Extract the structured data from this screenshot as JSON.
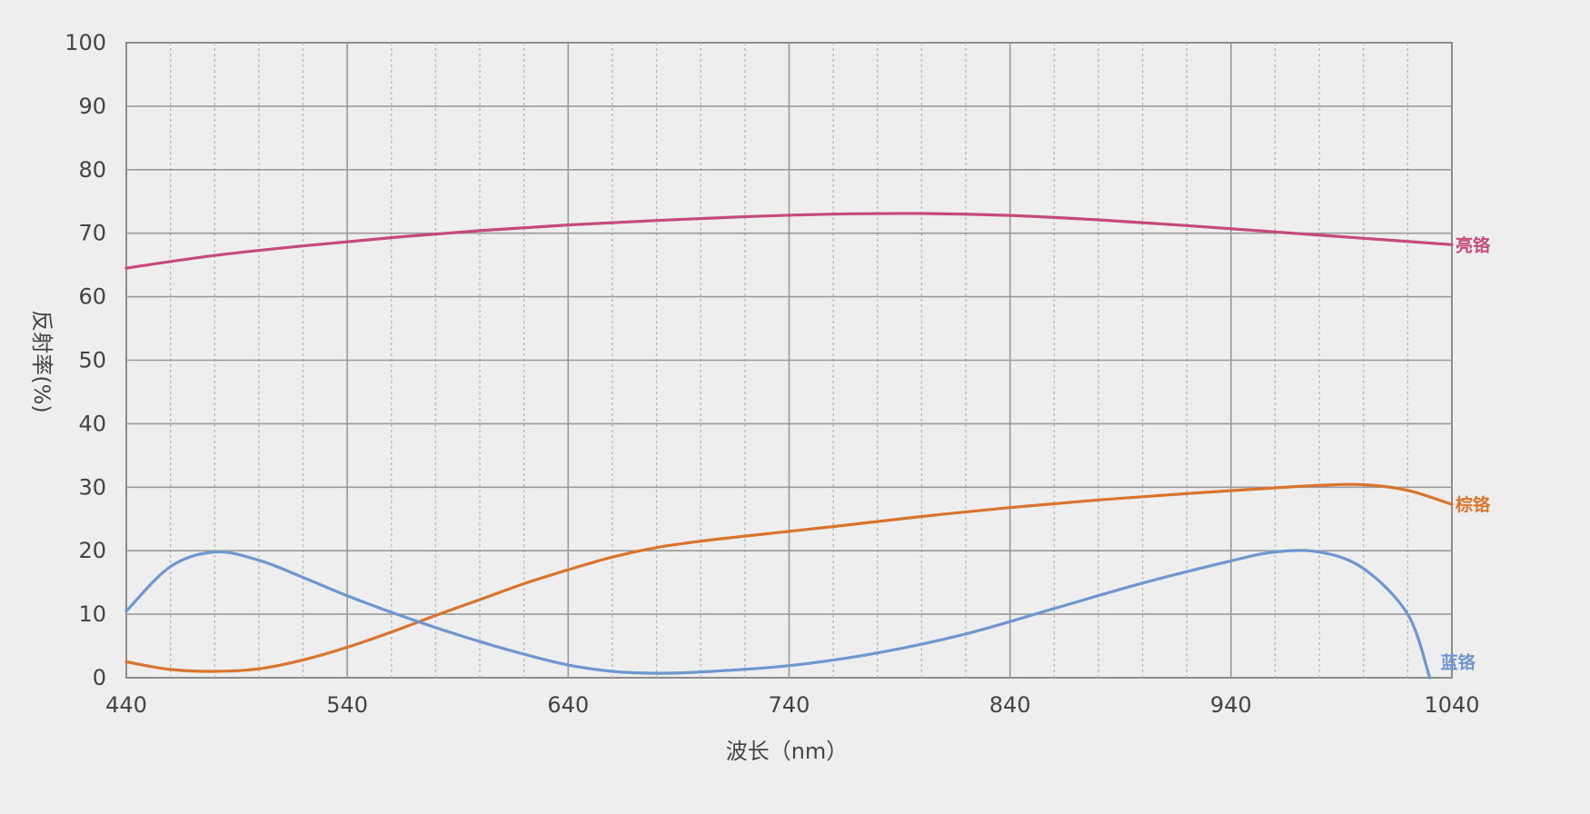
{
  "chart_data": {
    "type": "line",
    "title": "",
    "xlabel": "波长（nm）",
    "ylabel": "反射率(%)",
    "xlim": [
      440,
      1040
    ],
    "ylim": [
      0,
      100
    ],
    "x_ticks": [
      "440",
      "540",
      "640",
      "740",
      "840",
      "940",
      "1040"
    ],
    "y_ticks": [
      "0",
      "10",
      "20",
      "30",
      "40",
      "50",
      "60",
      "70",
      "80",
      "90",
      "100"
    ],
    "grid": true,
    "series": [
      {
        "name": "亮铬",
        "color": "#c4497c",
        "x": [
          440,
          480,
          520,
          560,
          600,
          640,
          680,
          720,
          760,
          800,
          840,
          880,
          920,
          960,
          1000,
          1040
        ],
        "y": [
          64.5,
          66.5,
          68.0,
          69.3,
          70.4,
          71.3,
          72.0,
          72.6,
          73.0,
          73.1,
          72.8,
          72.1,
          71.2,
          70.2,
          69.2,
          68.2
        ]
      },
      {
        "name": "棕铬",
        "color": "#d9742c",
        "x": [
          440,
          460,
          480,
          500,
          520,
          540,
          560,
          580,
          600,
          620,
          640,
          660,
          680,
          700,
          720,
          760,
          800,
          840,
          880,
          920,
          960,
          980,
          1000,
          1020,
          1040
        ],
        "y": [
          2.5,
          1.3,
          1.0,
          1.4,
          2.8,
          4.8,
          7.2,
          9.8,
          12.3,
          14.8,
          17.0,
          19.0,
          20.5,
          21.5,
          22.3,
          23.8,
          25.4,
          26.8,
          28.0,
          29.0,
          29.9,
          30.3,
          30.4,
          29.5,
          27.3
        ]
      },
      {
        "name": "蓝铬",
        "color": "#6e97cf",
        "x": [
          440,
          460,
          480,
          500,
          520,
          540,
          560,
          580,
          600,
          620,
          640,
          660,
          680,
          700,
          740,
          780,
          820,
          860,
          900,
          940,
          960,
          980,
          1000,
          1020,
          1030
        ],
        "y": [
          10.5,
          17.5,
          19.8,
          18.5,
          15.8,
          12.9,
          10.3,
          7.9,
          5.7,
          3.7,
          2.0,
          1.0,
          0.7,
          0.9,
          1.9,
          3.9,
          6.9,
          10.9,
          14.9,
          18.4,
          19.8,
          19.8,
          17.2,
          10.0,
          0.0
        ]
      }
    ]
  }
}
